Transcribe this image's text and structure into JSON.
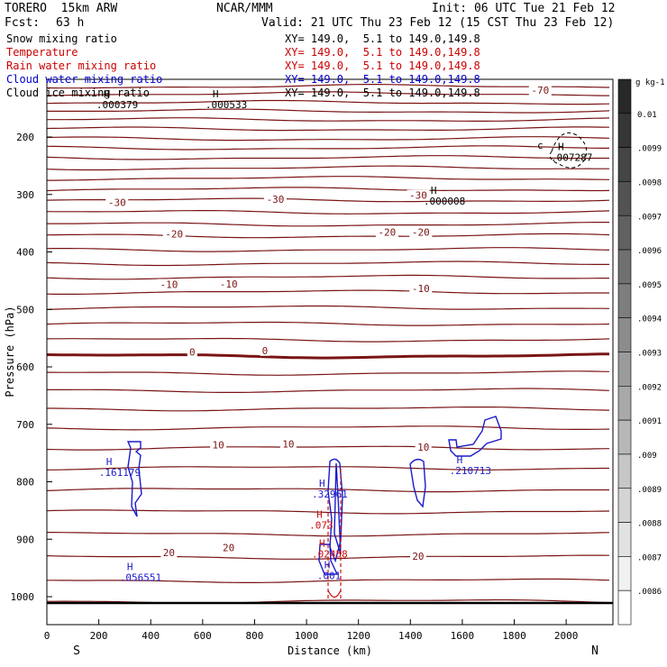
{
  "header": {
    "model": "TORERO  15km ARW",
    "center": "NCAR/MMM",
    "init": "Init: 06 UTC Tue 21 Feb 12",
    "fcst_label": "Fcst:",
    "fcst_value": "63 h",
    "valid": "Valid: 21 UTC Thu 23 Feb 12 (15 CST Thu 23 Feb 12)"
  },
  "fields": [
    {
      "name": "Snow mixing ratio",
      "xy": "XY= 149.0,  5.1 to 149.0,149.8",
      "color": "#000000"
    },
    {
      "name": "Temperature",
      "xy": "XY= 149.0,  5.1 to 149.0,149.8",
      "color": "#cc0000"
    },
    {
      "name": "Rain water mixing ratio",
      "xy": "XY= 149.0,  5.1 to 149.0,149.8",
      "color": "#cc0000"
    },
    {
      "name": "Cloud water mixing ratio",
      "xy": "XY= 149.0,  5.1 to 149.0,149.8",
      "color": "#0000cc"
    },
    {
      "name": "Cloud ice mixing ratio",
      "xy": "XY= 149.0,  5.1 to 149.0,149.8",
      "color": "#000000"
    }
  ],
  "colors": {
    "temperature": "#7a1414",
    "freezing": "#7a1414",
    "cloud_water": "#1a1acc",
    "rain": "#cc1111",
    "ice": "#000000"
  },
  "chart_data": {
    "type": "contour",
    "xlabel": "Distance (km)",
    "ylabel": "Pressure (hPa)",
    "xlim": [
      0,
      2180
    ],
    "ylim": [
      1050,
      100
    ],
    "xticks": [
      0,
      200,
      400,
      600,
      800,
      1000,
      1200,
      1400,
      1600,
      1800,
      2000
    ],
    "yticks": [
      200,
      300,
      400,
      500,
      600,
      700,
      800,
      900,
      1000
    ],
    "left_end": "S",
    "right_end": "N",
    "colorbar": {
      "unit": "g kg-1",
      "levels": [
        "0.01",
        ".0099",
        ".0098",
        ".0097",
        ".0096",
        ".0095",
        ".0094",
        ".0093",
        ".0092",
        ".0091",
        ".009",
        ".0089",
        ".0088",
        ".0087",
        ".0086"
      ]
    },
    "temperature_contour_labels": [
      {
        "x": 1900,
        "p": 120,
        "text": "-70"
      },
      {
        "x": 270,
        "p": 315,
        "text": "-30"
      },
      {
        "x": 880,
        "p": 310,
        "text": "-30"
      },
      {
        "x": 1430,
        "p": 303,
        "text": "-30"
      },
      {
        "x": 490,
        "p": 370,
        "text": "-20"
      },
      {
        "x": 1310,
        "p": 367,
        "text": "-20"
      },
      {
        "x": 1440,
        "p": 367,
        "text": "-20"
      },
      {
        "x": 470,
        "p": 458,
        "text": "-10"
      },
      {
        "x": 700,
        "p": 457,
        "text": "-10"
      },
      {
        "x": 1440,
        "p": 465,
        "text": "-10"
      },
      {
        "x": 560,
        "p": 576,
        "text": "0"
      },
      {
        "x": 840,
        "p": 573,
        "text": "0"
      },
      {
        "x": 660,
        "p": 737,
        "text": "10"
      },
      {
        "x": 930,
        "p": 736,
        "text": "10"
      },
      {
        "x": 1450,
        "p": 741,
        "text": "10"
      },
      {
        "x": 470,
        "p": 925,
        "text": "20"
      },
      {
        "x": 700,
        "p": 916,
        "text": "20"
      },
      {
        "x": 1430,
        "p": 931,
        "text": "20"
      }
    ],
    "maxima": [
      {
        "field": "snow",
        "x": 260,
        "p": 140,
        "text": ".000379"
      },
      {
        "field": "ice",
        "x": 680,
        "p": 140,
        "text": ".000533"
      },
      {
        "field": "ice",
        "x": 2010,
        "p": 232,
        "text": ".007287"
      },
      {
        "field": "ice",
        "x": 1520,
        "p": 308,
        "text": ".000008"
      },
      {
        "field": "cloud_water",
        "x": 270,
        "p": 780,
        "text": ".161179"
      },
      {
        "field": "cloud_water",
        "x": 1090,
        "p": 818,
        "text": ".32961"
      },
      {
        "field": "cloud_water",
        "x": 1620,
        "p": 777,
        "text": ".210713"
      },
      {
        "field": "cloud_water",
        "x": 350,
        "p": 963,
        "text": ".056551"
      },
      {
        "field": "rain",
        "x": 1080,
        "p": 872,
        "text": ".073"
      },
      {
        "field": "rain",
        "x": 1090,
        "p": 922,
        "text": ".02458"
      },
      {
        "field": "cloud_water",
        "x": 1110,
        "p": 960,
        "text": ".001"
      }
    ]
  }
}
